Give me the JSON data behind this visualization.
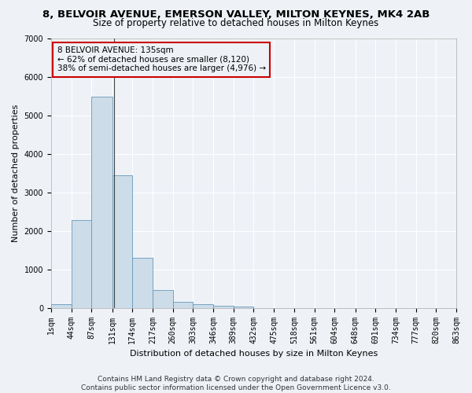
{
  "title": "8, BELVOIR AVENUE, EMERSON VALLEY, MILTON KEYNES, MK4 2AB",
  "subtitle": "Size of property relative to detached houses in Milton Keynes",
  "xlabel": "Distribution of detached houses by size in Milton Keynes",
  "ylabel": "Number of detached properties",
  "footer_line1": "Contains HM Land Registry data © Crown copyright and database right 2024.",
  "footer_line2": "Contains public sector information licensed under the Open Government Licence v3.0.",
  "bar_color": "#ccdce8",
  "bar_edge_color": "#6699bb",
  "annotation_box_edge": "#cc0000",
  "annotation_text_line1": "8 BELVOIR AVENUE: 135sqm",
  "annotation_text_line2": "← 62% of detached houses are smaller (8,120)",
  "annotation_text_line3": "38% of semi-detached houses are larger (4,976) →",
  "property_size_sqm": 135,
  "bin_edges": [
    1,
    44,
    87,
    131,
    174,
    217,
    260,
    303,
    346,
    389,
    432,
    475,
    518,
    561,
    604,
    648,
    691,
    734,
    777,
    820,
    863
  ],
  "bin_counts": [
    100,
    2280,
    5480,
    3440,
    1310,
    470,
    155,
    90,
    55,
    30,
    0,
    0,
    0,
    0,
    0,
    0,
    0,
    0,
    0,
    0
  ],
  "ylim": [
    0,
    7000
  ],
  "yticks": [
    0,
    1000,
    2000,
    3000,
    4000,
    5000,
    6000,
    7000
  ],
  "background_color": "#eef2f7",
  "grid_color": "#ffffff",
  "title_fontsize": 9.5,
  "subtitle_fontsize": 8.5,
  "axis_label_fontsize": 8,
  "tick_fontsize": 7,
  "annotation_fontsize": 7.5,
  "footer_fontsize": 6.5
}
